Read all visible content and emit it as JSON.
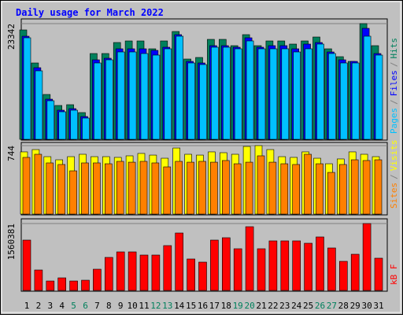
{
  "chart_data": [
    {
      "type": "bar",
      "title": "Daily usage for March 2022",
      "ylim": [
        0,
        23342
      ],
      "yticks": [
        23342
      ],
      "legend_separator": "/",
      "series": [
        {
          "name": "Hits",
          "color": "#00805c",
          "values": [
            22071,
            15403,
            9051,
            6828,
            6987,
            5399,
            17308,
            17308,
            19531,
            19849,
            19849,
            18261,
            19849,
            21754,
            16197,
            16514,
            20166,
            20166,
            18896,
            21119,
            18896,
            19849,
            19849,
            19214,
            19849,
            20643,
            18261,
            16673,
            15720,
            23342,
            18896
          ]
        },
        {
          "name": "Files",
          "color": "#0000ff",
          "values": [
            20803,
            14451,
            8099,
            5876,
            6193,
            4605,
            16039,
            16356,
            18262,
            18262,
            18262,
            17944,
            18580,
            21120,
            15721,
            15404,
            18897,
            18897,
            18580,
            20485,
            18580,
            18897,
            18897,
            18262,
            19215,
            19532,
            17627,
            16039,
            15721,
            22391,
            17309
          ]
        },
        {
          "name": "Pages",
          "color": "#00c0ff",
          "values": [
            20485,
            13816,
            7781,
            5558,
            5876,
            4288,
            15404,
            16039,
            17627,
            17627,
            17309,
            16992,
            18262,
            20803,
            15404,
            15086,
            18580,
            18580,
            18262,
            19850,
            18262,
            18262,
            18262,
            17627,
            18262,
            19215,
            17309,
            15404,
            15404,
            20803,
            16992
          ]
        }
      ]
    },
    {
      "type": "bar",
      "ylim": [
        0,
        744
      ],
      "yticks": [
        744
      ],
      "legend_separator": "/",
      "series": [
        {
          "name": "Visits",
          "color": "#ffff00",
          "values": [
            676,
            701,
            624,
            590,
            624,
            650,
            624,
            624,
            616,
            633,
            659,
            641,
            607,
            718,
            650,
            641,
            676,
            667,
            650,
            735,
            744,
            701,
            624,
            616,
            676,
            607,
            547,
            599,
            676,
            650,
            624
          ]
        },
        {
          "name": "Sites",
          "color": "#ff8000",
          "values": [
            616,
            650,
            556,
            539,
            470,
            556,
            556,
            547,
            573,
            564,
            573,
            556,
            513,
            573,
            564,
            573,
            564,
            582,
            547,
            564,
            633,
            564,
            547,
            539,
            650,
            547,
            453,
            539,
            590,
            582,
            590
          ]
        }
      ]
    },
    {
      "type": "bar",
      "ylim": [
        0,
        1560381
      ],
      "yticks": [
        1560381
      ],
      "categories": [
        "1",
        "2",
        "3",
        "4",
        "5",
        "6",
        "7",
        "8",
        "9",
        "10",
        "11",
        "12",
        "13",
        "14",
        "15",
        "16",
        "17",
        "18",
        "19",
        "20",
        "21",
        "22",
        "23",
        "24",
        "25",
        "26",
        "27",
        "28",
        "29",
        "30",
        "31"
      ],
      "category_colors": [
        "#000000",
        "#000000",
        "#000000",
        "#000000",
        "#00805c",
        "#00805c",
        "#000000",
        "#000000",
        "#000000",
        "#000000",
        "#000000",
        "#00805c",
        "#00805c",
        "#000000",
        "#000000",
        "#000000",
        "#000000",
        "#000000",
        "#00805c",
        "#00805c",
        "#000000",
        "#000000",
        "#000000",
        "#000000",
        "#000000",
        "#00805c",
        "#00805c",
        "#000000",
        "#000000",
        "#000000",
        "#000000"
      ],
      "series": [
        {
          "name": "kB F",
          "color": "#ff0000",
          "values": [
            1174874,
            477292,
            220289,
            293718,
            220289,
            238646,
            495650,
            771011,
            899513,
            899513,
            826083,
            826083,
            1046372,
            1340090,
            734296,
            660866,
            1174874,
            1229946,
            972942,
            1486952,
            972942,
            1156516,
            1156516,
            1156516,
            1101444,
            1248303,
            991300,
            679224,
            844440,
            1560381,
            752653
          ]
        }
      ]
    }
  ]
}
